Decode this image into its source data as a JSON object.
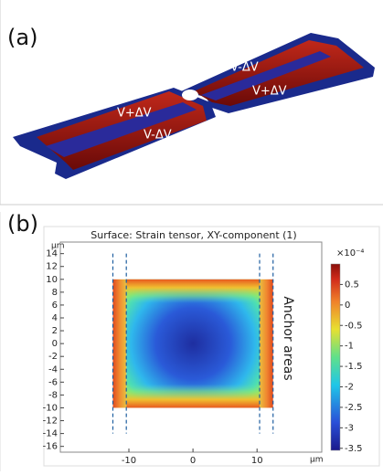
{
  "panel_a": {
    "label": "(a)",
    "annotations": [
      "V+ΔV",
      "V-ΔV",
      "V-ΔV",
      "V+ΔV"
    ]
  },
  "panel_b": {
    "label": "(b)"
  },
  "chart_data": {
    "type": "heatmap",
    "title": "Surface: Strain tensor, XY-component (1)",
    "x_unit": "µm",
    "y_unit": "µm",
    "xlim": [
      -20.7,
      20.1
    ],
    "ylim": [
      -16.9,
      15.8
    ],
    "xticks": [
      -10,
      0,
      10
    ],
    "yticks": [
      14,
      12,
      10,
      8,
      6,
      4,
      2,
      0,
      -2,
      -4,
      -6,
      -8,
      -10,
      -12,
      -14,
      -16
    ],
    "field": {
      "xlim": [
        -12.5,
        12.5
      ],
      "ylim": [
        -10,
        10
      ]
    },
    "dashed_lines": {
      "x": [
        -12.5,
        -10.4,
        10.4,
        12.5
      ],
      "ylim": [
        -14,
        14
      ]
    },
    "annotation": "Anchor areas",
    "colorbar": {
      "label": "×10⁻⁴",
      "clim": [
        -3.55,
        1.0
      ],
      "ticks": [
        0.5,
        0,
        -0.5,
        -1,
        -1.5,
        -2,
        -2.5,
        -3,
        -3.5
      ]
    }
  }
}
